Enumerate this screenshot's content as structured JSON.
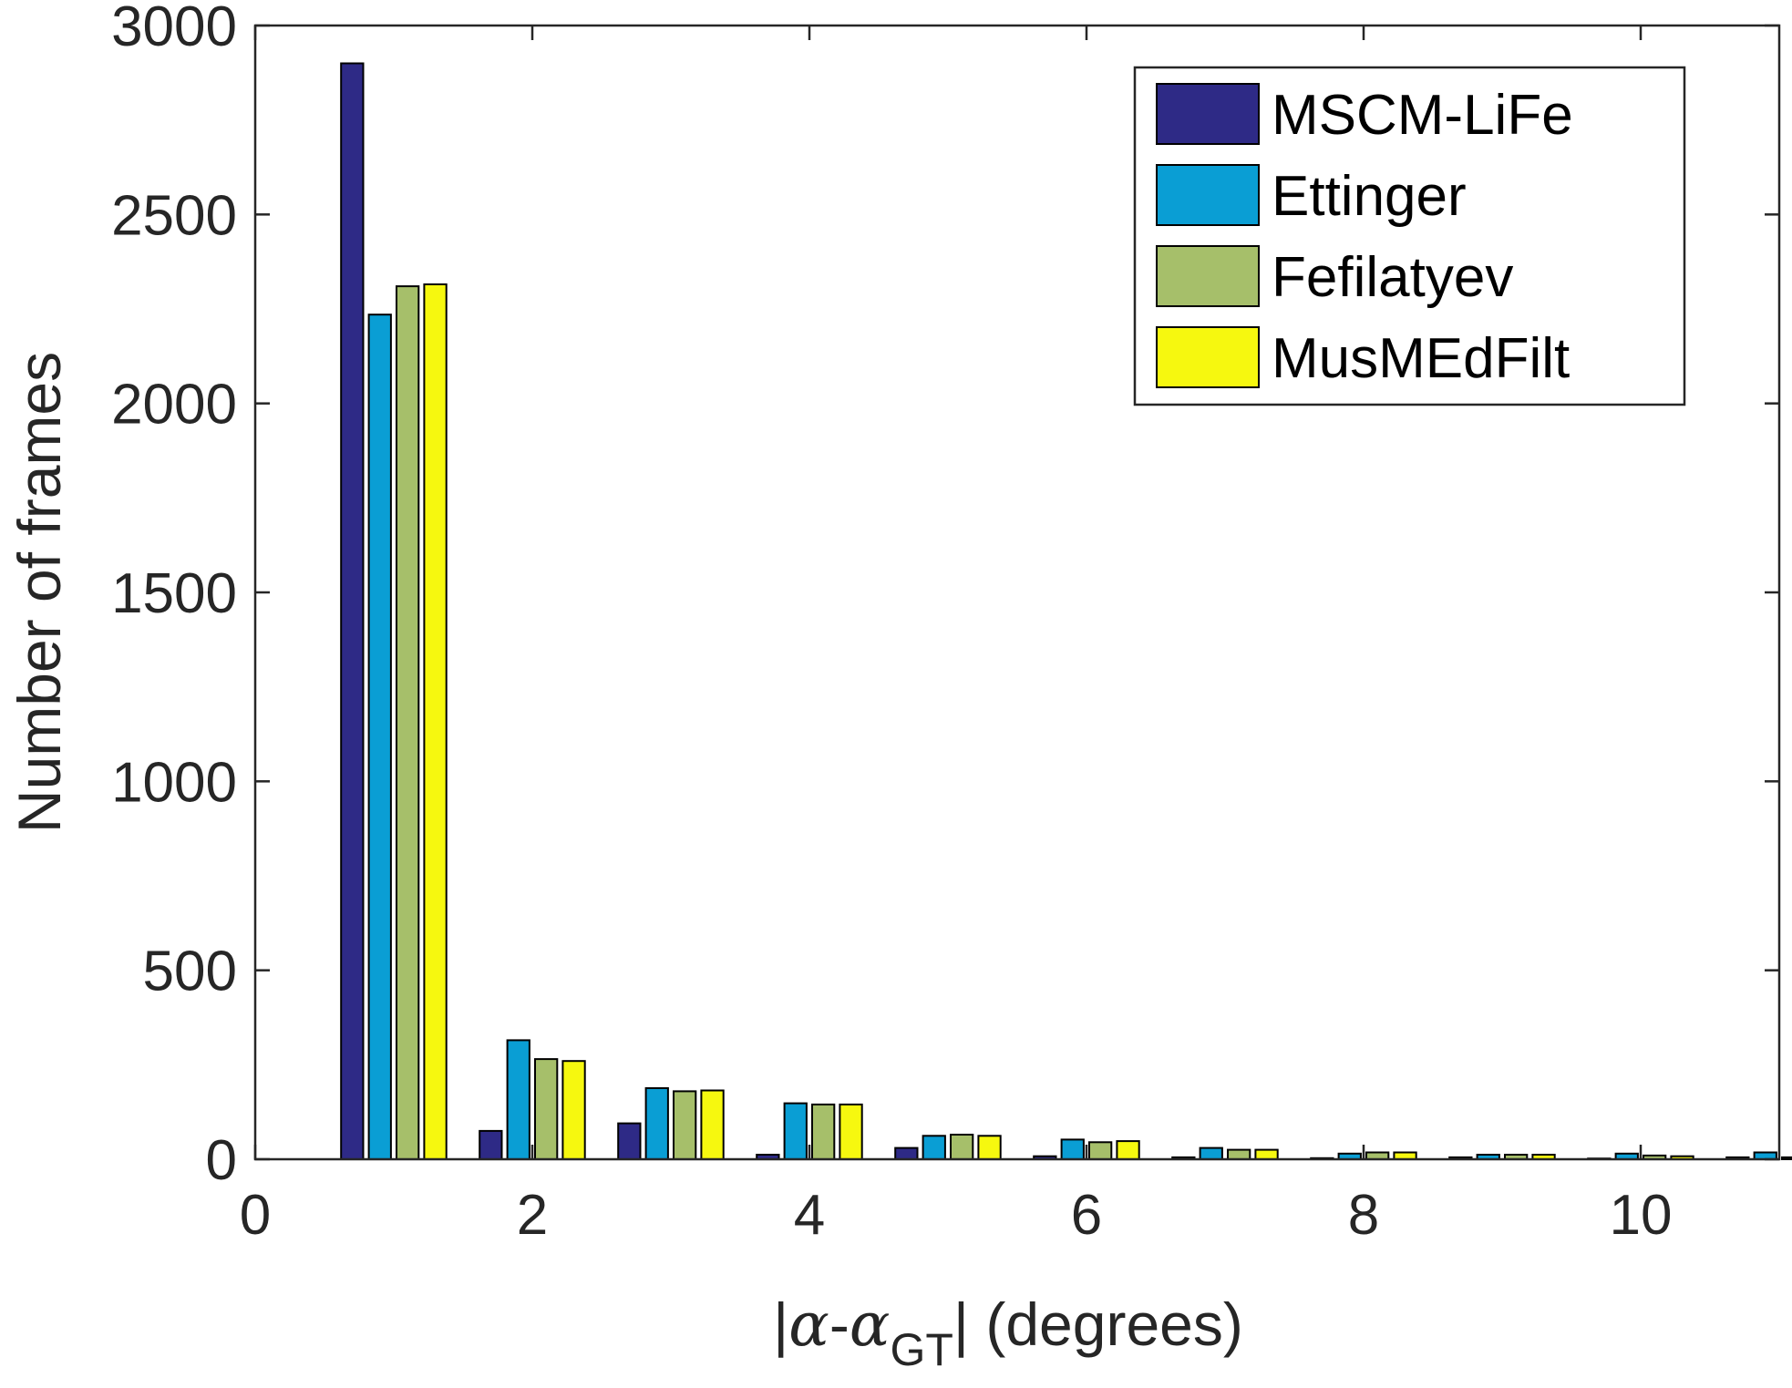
{
  "chart_data": {
    "type": "bar",
    "xlabel_parts": {
      "bar_left": "|",
      "alpha": "α",
      "dash": "-",
      "alpha2": "α",
      "subscript": "GT",
      "bar_right": "|",
      "units": " (degrees)"
    },
    "ylabel": "Number of frames",
    "xlim": [
      0,
      11
    ],
    "ylim": [
      0,
      3000
    ],
    "x_ticks": [
      0,
      2,
      4,
      6,
      8,
      10
    ],
    "y_ticks": [
      0,
      500,
      1000,
      1500,
      2000,
      2500,
      3000
    ],
    "grid": false,
    "legend_position": "top-right",
    "categories": [
      1,
      2,
      3,
      4,
      5,
      6,
      7,
      8,
      9,
      10,
      11
    ],
    "series": [
      {
        "name": "MSCM-LiFe",
        "color": "#2e2a86",
        "values": [
          2900,
          75,
          95,
          12,
          30,
          8,
          5,
          3,
          5,
          2,
          5
        ]
      },
      {
        "name": "Ettinger",
        "color": "#0a9ed4",
        "values": [
          2235,
          315,
          188,
          148,
          62,
          52,
          30,
          15,
          12,
          15,
          18
        ]
      },
      {
        "name": "Fefilatyev",
        "color": "#a6bf6a",
        "values": [
          2310,
          265,
          180,
          145,
          65,
          45,
          25,
          18,
          12,
          10,
          5
        ]
      },
      {
        "name": "MusMEdFilt",
        "color": "#f6f80f",
        "values": [
          2315,
          260,
          182,
          145,
          62,
          48,
          25,
          18,
          12,
          8,
          3
        ]
      }
    ]
  }
}
